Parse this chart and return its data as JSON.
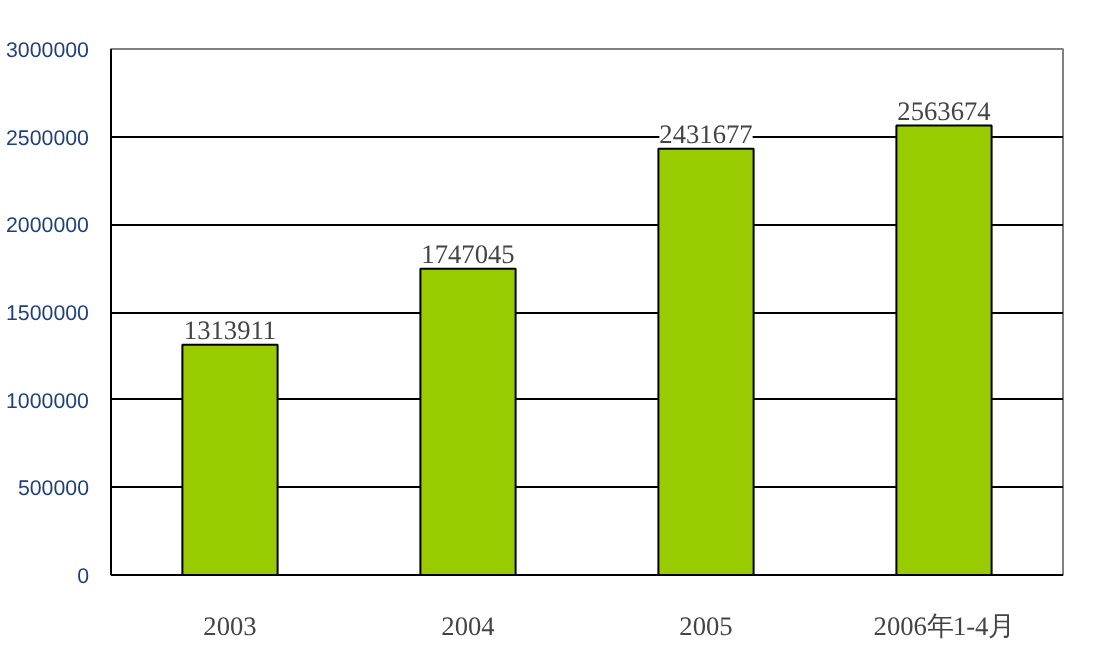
{
  "chart_data": {
    "type": "bar",
    "categories": [
      "2003",
      "2004",
      "2005",
      "2006年1-4月"
    ],
    "values": [
      1313911,
      1747045,
      2431677,
      2563674
    ],
    "color": "#99cc00",
    "ylim": [
      0,
      3000000
    ],
    "yticks": [
      0,
      500000,
      1000000,
      1500000,
      2000000,
      2500000,
      3000000
    ],
    "grid": "y",
    "data_labels": true
  }
}
